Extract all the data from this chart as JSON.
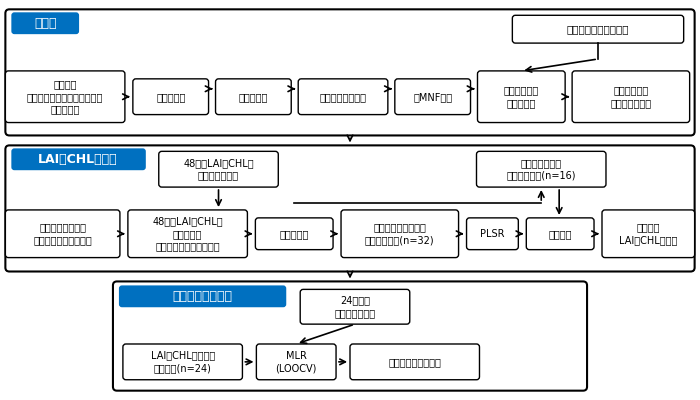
{
  "bg_color": "#ffffff",
  "border_color": "#000000",
  "blue_label_bg": "#0070c0",
  "blue_label_color": "#ffffff",
  "box_bg": "#ffffff",
  "box_border": "#000000",
  "arrow_color": "#000000",
  "section1_label": "前処理",
  "section2_label": "LAIとCHLの予測",
  "section3_label": "穀物の収穫量予測",
  "field_spec": "フィールドスペクトル",
  "raw": "未処理の\nハイパースペクトルイメージ\n（輝度値）",
  "refl": "反射率変換",
  "ortho": "オルソ補正",
  "geo": "ジオリファレンス",
  "mnf": "逆MNF変換",
  "emp": "経験的直線法\nによる補正",
  "subset": "スペクトル・\n空間サブセット",
  "field48": "48個のLAIとCHLの\nフィールド測定",
  "valid": "バリデーション\nデータセット(n=16)",
  "sample": "サンプル位置での\n画像スペクトルの抽出",
  "pair": "48個のLAIとCHLの\nサンプルと\nスペクトルのペアリング",
  "split": "データ分割",
  "calib": "キャリブレーション\nデータセット(n=32)",
  "plsr": "PLSR",
  "indep": "独立検証",
  "predict_lai": "画像中の\nLAIとCHLの予測",
  "obs24": "24圧場の\n収穫量の実測値",
  "avg_lai": "LAIとCHLの予測値\nの平均値(n=24)",
  "mlr": "MLR\n(LOOCV)",
  "predict_yield": "画像中の収穫量予測"
}
